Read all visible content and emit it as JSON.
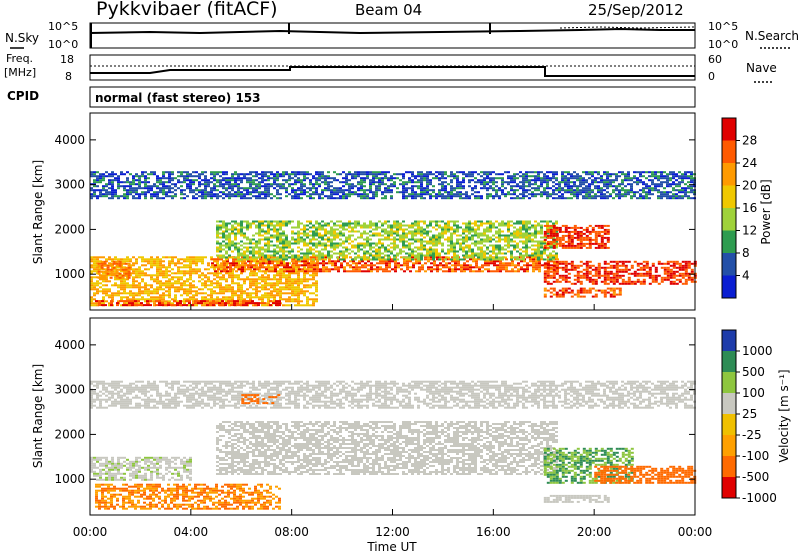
{
  "header": {
    "station": "Pykkvibaer (fitACF)",
    "beam": "Beam 04",
    "date": "25/Sep/2012"
  },
  "aux_panels": {
    "nsky": {
      "label": "N.Sky",
      "ticks": [
        "10^5",
        "10^0"
      ]
    },
    "nsearch": {
      "label": "N.Search",
      "ticks": [
        "10^5",
        "10^0"
      ]
    },
    "freq": {
      "label_line1": "Freq.",
      "label_line2": "[MHz]",
      "ticks": [
        "18",
        "8"
      ]
    },
    "nave": {
      "label": "Nave",
      "ticks": [
        "60",
        "0"
      ]
    },
    "cpid": {
      "label": "CPID",
      "value": "normal (fast stereo) 153"
    }
  },
  "x_axis": {
    "label": "Time UT",
    "ticks": [
      "00:00",
      "04:00",
      "08:00",
      "12:00",
      "16:00",
      "20:00",
      "00:00"
    ]
  },
  "power_colorbar": {
    "label": "Power [dB]",
    "ticks": [
      "28",
      "24",
      "20",
      "16",
      "12",
      "8",
      "4"
    ],
    "colors": [
      "#e00000",
      "#ff5a00",
      "#ff9a00",
      "#f0c800",
      "#9fd23a",
      "#2e9c50",
      "#2350a8",
      "#0a1ed2"
    ]
  },
  "velocity_colorbar": {
    "label": "Velocity [m s⁻¹]",
    "ticks": [
      "1000",
      "500",
      "100",
      "25",
      "-25",
      "-100",
      "-500",
      "-1000"
    ],
    "colors": [
      "#1e3caa",
      "#2e8c55",
      "#8ec63f",
      "#c8c8c0",
      "#f0c000",
      "#ffa000",
      "#ff6a00",
      "#e00000"
    ]
  },
  "chart_data": [
    {
      "type": "heatmap",
      "title": "Power",
      "ylabel": "Slant Range [km]",
      "xlabel": "Time UT",
      "y_ticks": [
        "1000",
        "2000",
        "3000",
        "4000"
      ],
      "ylim": [
        200,
        4600
      ],
      "xlim_hours": [
        0,
        24
      ],
      "colorbar": "Power [dB]",
      "regions": [
        {
          "t0": 0.0,
          "t1": 9.0,
          "r0": 300,
          "r1": 1400,
          "level": 20
        },
        {
          "t0": 0.2,
          "t1": 7.5,
          "r0": 320,
          "r1": 420,
          "level": 28
        },
        {
          "t0": 0.3,
          "t1": 1.5,
          "r0": 900,
          "r1": 1300,
          "level": 24
        },
        {
          "t0": 0.0,
          "t1": 24.0,
          "r0": 2700,
          "r1": 3300,
          "level": 6
        },
        {
          "t0": 4.8,
          "t1": 18.5,
          "r0": 1050,
          "r1": 1400,
          "level": 26
        },
        {
          "t0": 5.0,
          "t1": 18.5,
          "r0": 1350,
          "r1": 2200,
          "level": 14
        },
        {
          "t0": 18.0,
          "t1": 24.0,
          "r0": 800,
          "r1": 1300,
          "level": 28
        },
        {
          "t0": 18.0,
          "t1": 20.5,
          "r0": 1600,
          "r1": 2100,
          "level": 28
        },
        {
          "t0": 18.0,
          "t1": 21.0,
          "r0": 500,
          "r1": 700,
          "level": 26
        }
      ]
    },
    {
      "type": "heatmap",
      "title": "Velocity",
      "ylabel": "Slant Range [km]",
      "xlabel": "Time UT",
      "y_ticks": [
        "1000",
        "2000",
        "3000",
        "4000"
      ],
      "ylim": [
        200,
        4600
      ],
      "xlim_hours": [
        0,
        24
      ],
      "colorbar": "Velocity [m s⁻¹]",
      "regions": [
        {
          "t0": 0.2,
          "t1": 7.5,
          "r0": 350,
          "r1": 900,
          "level": -300
        },
        {
          "t0": 0.0,
          "t1": 4.0,
          "r0": 1000,
          "r1": 1500,
          "level": 50
        },
        {
          "t0": 5.0,
          "t1": 18.5,
          "r0": 1100,
          "r1": 2300,
          "level": 0
        },
        {
          "t0": 0.0,
          "t1": 24.0,
          "r0": 2600,
          "r1": 3200,
          "level": 0
        },
        {
          "t0": 6.0,
          "t1": 7.5,
          "r0": 2700,
          "r1": 2900,
          "level": -500
        },
        {
          "t0": 18.0,
          "t1": 21.5,
          "r0": 900,
          "r1": 1700,
          "level": 300
        },
        {
          "t0": 20.0,
          "t1": 24.0,
          "r0": 900,
          "r1": 1300,
          "level": -500
        },
        {
          "t0": 18.0,
          "t1": 20.5,
          "r0": 500,
          "r1": 650,
          "level": 0
        }
      ]
    }
  ]
}
